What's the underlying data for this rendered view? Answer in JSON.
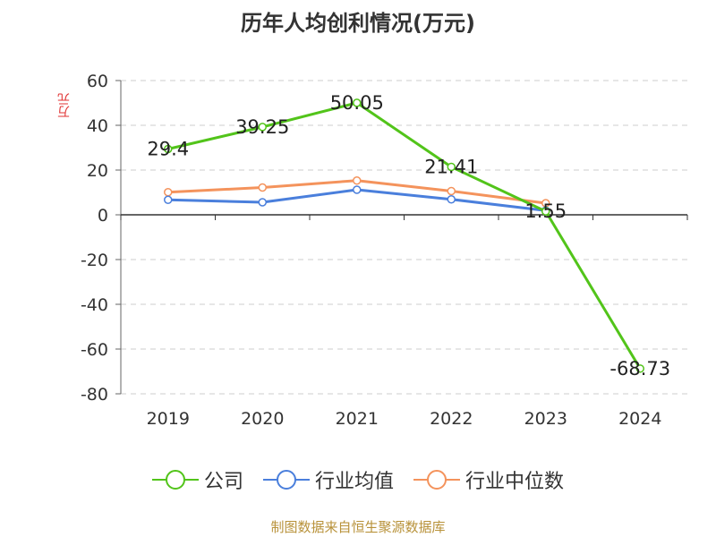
{
  "title": "历年人均创利情况(万元)",
  "source": "制图数据来自恒生聚源数据库",
  "chart_data": {
    "type": "line",
    "title": "历年人均创利情况(万元)",
    "ylabel": "万元",
    "xlabel": "",
    "categories": [
      "2019",
      "2020",
      "2021",
      "2022",
      "2023",
      "2024"
    ],
    "ylim": [
      -80,
      60
    ],
    "yticks": [
      60,
      40,
      20,
      0,
      -20,
      -40,
      -60,
      -80
    ],
    "grid": true,
    "legend_position": "bottom",
    "series": [
      {
        "name": "公司",
        "color": "#52c41a",
        "values": [
          29.4,
          39.25,
          50.05,
          21.41,
          1.55,
          -68.73
        ],
        "labels": [
          "29.4",
          "39.25",
          "50.05",
          "21.41",
          "1.55",
          "-68.73"
        ]
      },
      {
        "name": "行业均值",
        "color": "#4a7fdc",
        "values": [
          6.7,
          5.6,
          11.2,
          6.9,
          1.9,
          null
        ]
      },
      {
        "name": "行业中位数",
        "color": "#f4935c",
        "values": [
          10.1,
          12.2,
          15.3,
          10.6,
          5.2,
          null
        ]
      }
    ]
  }
}
